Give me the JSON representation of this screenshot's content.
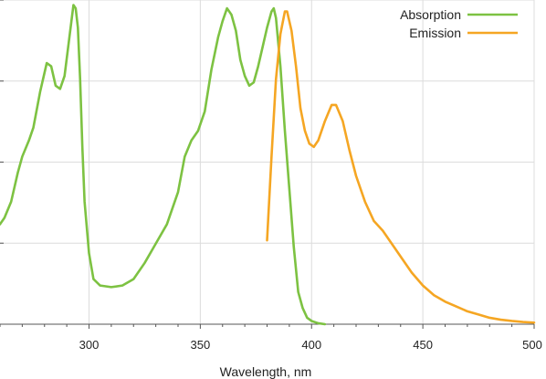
{
  "chart_data": {
    "type": "line",
    "title": "",
    "xlabel": "Wavelength, nm",
    "ylabel": "",
    "xlim": [
      260,
      500
    ],
    "ylim": [
      0,
      1
    ],
    "x_ticks": [
      "300",
      "350",
      "400",
      "450",
      "500"
    ],
    "grid": true,
    "legend_position": "top-right",
    "series": [
      {
        "name": "Absorption",
        "color": "#7dc242",
        "points": [
          [
            260,
            0.31
          ],
          [
            262,
            0.33
          ],
          [
            265,
            0.38
          ],
          [
            268,
            0.47
          ],
          [
            270,
            0.52
          ],
          [
            273,
            0.57
          ],
          [
            275,
            0.61
          ],
          [
            278,
            0.72
          ],
          [
            281,
            0.81
          ],
          [
            283,
            0.8
          ],
          [
            285,
            0.74
          ],
          [
            287,
            0.73
          ],
          [
            289,
            0.77
          ],
          [
            291,
            0.88
          ],
          [
            293,
            0.99
          ],
          [
            294,
            0.98
          ],
          [
            295,
            0.92
          ],
          [
            296,
            0.76
          ],
          [
            297,
            0.55
          ],
          [
            298,
            0.38
          ],
          [
            300,
            0.22
          ],
          [
            302,
            0.14
          ],
          [
            305,
            0.12
          ],
          [
            310,
            0.115
          ],
          [
            315,
            0.12
          ],
          [
            320,
            0.14
          ],
          [
            325,
            0.19
          ],
          [
            330,
            0.25
          ],
          [
            335,
            0.31
          ],
          [
            340,
            0.41
          ],
          [
            343,
            0.52
          ],
          [
            346,
            0.57
          ],
          [
            349,
            0.6
          ],
          [
            352,
            0.66
          ],
          [
            355,
            0.79
          ],
          [
            358,
            0.89
          ],
          [
            360,
            0.94
          ],
          [
            362,
            0.98
          ],
          [
            364,
            0.96
          ],
          [
            366,
            0.91
          ],
          [
            368,
            0.82
          ],
          [
            370,
            0.77
          ],
          [
            372,
            0.74
          ],
          [
            374,
            0.75
          ],
          [
            376,
            0.8
          ],
          [
            378,
            0.86
          ],
          [
            380,
            0.92
          ],
          [
            382,
            0.97
          ],
          [
            383,
            0.98
          ],
          [
            384,
            0.95
          ],
          [
            386,
            0.8
          ],
          [
            388,
            0.6
          ],
          [
            390,
            0.42
          ],
          [
            392,
            0.24
          ],
          [
            394,
            0.1
          ],
          [
            396,
            0.05
          ],
          [
            398,
            0.02
          ],
          [
            400,
            0.01
          ],
          [
            403,
            0.003
          ],
          [
            406,
            0.0
          ]
        ]
      },
      {
        "name": "Emission",
        "color": "#f5a623",
        "points": [
          [
            380,
            0.26
          ],
          [
            382,
            0.52
          ],
          [
            384,
            0.76
          ],
          [
            386,
            0.9
          ],
          [
            388,
            0.97
          ],
          [
            389,
            0.97
          ],
          [
            391,
            0.91
          ],
          [
            393,
            0.8
          ],
          [
            395,
            0.67
          ],
          [
            397,
            0.6
          ],
          [
            399,
            0.56
          ],
          [
            401,
            0.55
          ],
          [
            403,
            0.57
          ],
          [
            406,
            0.63
          ],
          [
            409,
            0.68
          ],
          [
            411,
            0.68
          ],
          [
            414,
            0.63
          ],
          [
            417,
            0.54
          ],
          [
            420,
            0.46
          ],
          [
            424,
            0.38
          ],
          [
            428,
            0.32
          ],
          [
            432,
            0.29
          ],
          [
            436,
            0.25
          ],
          [
            440,
            0.21
          ],
          [
            445,
            0.16
          ],
          [
            450,
            0.12
          ],
          [
            455,
            0.09
          ],
          [
            460,
            0.07
          ],
          [
            465,
            0.055
          ],
          [
            470,
            0.04
          ],
          [
            475,
            0.03
          ],
          [
            480,
            0.02
          ],
          [
            485,
            0.014
          ],
          [
            490,
            0.01
          ],
          [
            495,
            0.007
          ],
          [
            500,
            0.005
          ]
        ]
      }
    ]
  }
}
